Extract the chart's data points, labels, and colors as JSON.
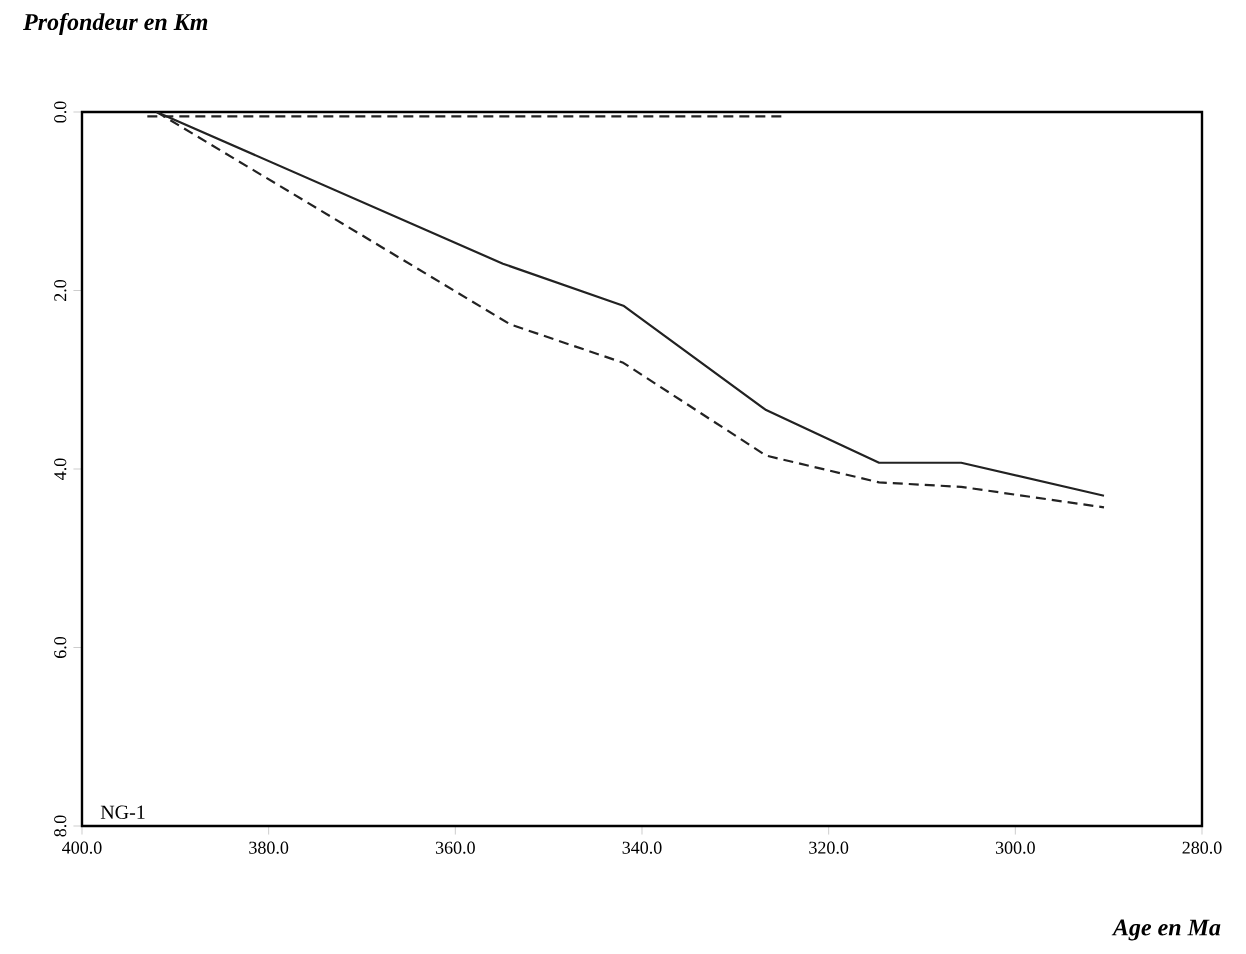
{
  "chart_data": {
    "type": "line",
    "title": "Profondeur en Km",
    "xlabel": "Age en Ma",
    "series": [
      {
        "x": [
          392,
          354.9,
          342.0,
          326.7,
          314.6,
          305.8,
          290.5
        ],
        "values": [
          0,
          1.7,
          2.17,
          3.34,
          3.93,
          3.93,
          4.3
        ],
        "color": "#222222",
        "line_style": "solid"
      },
      {
        "x": [
          392,
          354.1,
          342.0,
          326.7,
          314.6,
          305.8,
          290.5
        ],
        "values": [
          0,
          2.38,
          2.81,
          3.85,
          4.15,
          4.2,
          4.43
        ],
        "color": "#222222",
        "line_style": "dashed"
      },
      {
        "x": [
          393,
          325
        ],
        "values": [
          0.05,
          0.05
        ],
        "color": "#222222",
        "line_style": "dashed"
      }
    ],
    "xlim": [
      400,
      280
    ],
    "ylim": [
      8,
      0
    ],
    "xticks": [
      {
        "value": 400,
        "label": "400.0"
      },
      {
        "value": 380,
        "label": "380.0"
      },
      {
        "value": 360,
        "label": "360.0"
      },
      {
        "value": 340,
        "label": "340.0"
      },
      {
        "value": 320,
        "label": "320.0"
      },
      {
        "value": 300,
        "label": "300.0"
      },
      {
        "value": 280,
        "label": "280.0"
      }
    ],
    "yticks": [
      {
        "value": 0,
        "label": "0.0"
      },
      {
        "value": 2,
        "label": "2.0"
      },
      {
        "value": 4,
        "label": "4.0"
      },
      {
        "value": 6,
        "label": "6.0"
      },
      {
        "value": 8,
        "label": "8.0"
      }
    ],
    "annotations": [
      "NG-1"
    ],
    "grid": false,
    "marker": "none"
  }
}
